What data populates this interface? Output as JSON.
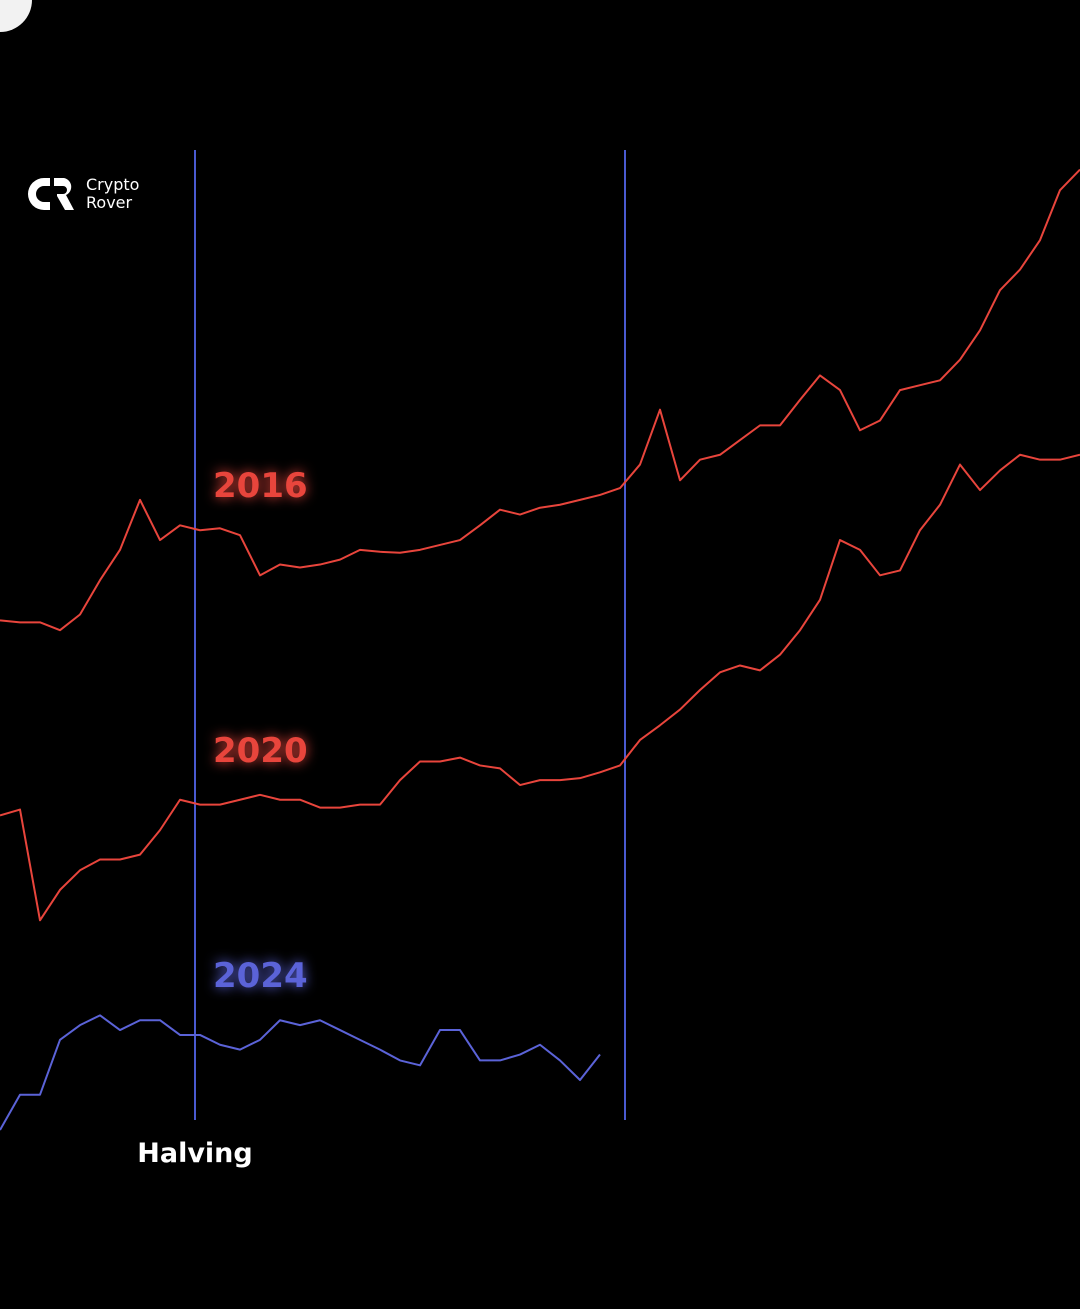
{
  "logo": {
    "line1": "Crypto",
    "line2": "Rover"
  },
  "chart_data": {
    "type": "line",
    "x": [
      0,
      1,
      2,
      3,
      4,
      5,
      6,
      7,
      8,
      9,
      10,
      11,
      12,
      13,
      14,
      15,
      16,
      17,
      18,
      19,
      20,
      21,
      22,
      23,
      24,
      25,
      26,
      27,
      28,
      29,
      30,
      31,
      32,
      33,
      34,
      35,
      36,
      37,
      38,
      39,
      40,
      41,
      42,
      43,
      44,
      45,
      46,
      47,
      48,
      49,
      50,
      51,
      52,
      53,
      54
    ],
    "xlim": [
      0,
      54
    ],
    "ylim": [
      0,
      100
    ],
    "series": [
      {
        "name": "2016",
        "color": "#e8453c",
        "values": [
          52.0,
          51.8,
          51.8,
          51.0,
          52.6,
          56.1,
          59.2,
          64.3,
          60.2,
          61.7,
          61.2,
          61.4,
          60.7,
          56.6,
          57.7,
          57.4,
          57.7,
          58.2,
          59.2,
          59.0,
          58.9,
          59.2,
          59.7,
          60.2,
          61.7,
          63.3,
          62.8,
          63.5,
          63.8,
          64.3,
          64.8,
          65.5,
          67.9,
          73.5,
          66.3,
          68.4,
          68.9,
          70.4,
          71.9,
          71.9,
          74.5,
          77.0,
          75.5,
          71.4,
          72.4,
          75.5,
          76.0,
          76.5,
          78.6,
          81.6,
          85.7,
          87.8,
          90.8,
          95.9,
          98.0
        ]
      },
      {
        "name": "2020",
        "color": "#e8453c",
        "values": [
          32.1,
          32.7,
          21.4,
          24.5,
          26.5,
          27.6,
          27.6,
          28.1,
          30.6,
          33.7,
          33.2,
          33.2,
          33.7,
          34.2,
          33.7,
          33.7,
          32.9,
          32.9,
          33.2,
          33.2,
          35.7,
          37.6,
          37.6,
          38.0,
          37.2,
          36.9,
          35.2,
          35.7,
          35.7,
          35.9,
          36.5,
          37.2,
          39.8,
          41.3,
          42.9,
          44.9,
          46.7,
          47.4,
          46.9,
          48.5,
          51.0,
          54.1,
          60.2,
          59.2,
          56.6,
          57.1,
          61.2,
          63.8,
          67.9,
          65.3,
          67.3,
          68.9,
          68.4,
          68.4,
          68.9
        ]
      },
      {
        "name": "2024",
        "color": "#5b63d8",
        "values": [
          0.0,
          3.6,
          3.6,
          9.2,
          10.7,
          11.7,
          10.2,
          11.2,
          11.2,
          9.7,
          9.7,
          8.7,
          8.2,
          9.2,
          11.2,
          10.7,
          11.2,
          10.2,
          9.2,
          8.2,
          7.1,
          6.6,
          10.2,
          10.2,
          7.1,
          7.1,
          7.7,
          8.7,
          7.1,
          5.1,
          7.7,
          null,
          null,
          null,
          null,
          null,
          null,
          null,
          null,
          null,
          null,
          null,
          null,
          null,
          null,
          null,
          null,
          null,
          null,
          null,
          null,
          null,
          null,
          null,
          null
        ]
      }
    ],
    "vlines": [
      {
        "x": 9.75,
        "label": "Halving",
        "color": "#4a5ad0"
      },
      {
        "x": 31.25,
        "color": "#4a5ad0"
      }
    ]
  }
}
